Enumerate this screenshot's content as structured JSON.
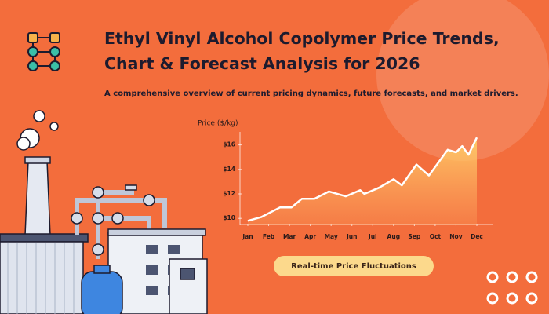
{
  "header": {
    "title_lines": [
      "Ethyl Vinyl Alcohol Copolymer Price Trends,",
      "Chart & Forecast Analysis for 2026"
    ],
    "subtitle": "A comprehensive overview of current pricing dynamics, future forecasts, and market drivers."
  },
  "chart_data": {
    "type": "area",
    "y_label": "Price ($/kg)",
    "x": [
      1,
      1.64,
      2.55,
      3.1,
      3.6,
      4.2,
      4.9,
      5.7,
      6.4,
      6.6,
      7.3,
      8.0,
      8.4,
      9.1,
      9.7,
      10.6,
      11.0,
      11.3,
      11.6,
      12
    ],
    "values": [
      9.8,
      10.1,
      10.9,
      10.9,
      11.6,
      11.6,
      12.2,
      11.8,
      12.3,
      12.0,
      12.5,
      13.2,
      12.7,
      14.4,
      13.5,
      15.6,
      15.4,
      15.9,
      15.2,
      16.6
    ],
    "color": "#ffffff",
    "xlim": [
      1,
      12
    ],
    "xticks": [
      {
        "value": 1,
        "label": "Jan"
      },
      {
        "value": 2,
        "label": "Feb"
      },
      {
        "value": 3,
        "label": "Mar"
      },
      {
        "value": 4,
        "label": "Apr"
      },
      {
        "value": 5,
        "label": "May"
      },
      {
        "value": 6,
        "label": "Jun"
      },
      {
        "value": 7,
        "label": "Jul"
      },
      {
        "value": 8,
        "label": "Aug"
      },
      {
        "value": 9,
        "label": "Sep"
      },
      {
        "value": 10,
        "label": "Oct"
      },
      {
        "value": 11,
        "label": "Nov"
      },
      {
        "value": 12,
        "label": "Dec"
      }
    ],
    "ylim": [
      9.5,
      17
    ],
    "yticks": [
      {
        "value": 10,
        "label": "$10"
      },
      {
        "value": 12,
        "label": "$12"
      },
      {
        "value": 14,
        "label": "$14"
      },
      {
        "value": 16,
        "label": "$16"
      }
    ]
  },
  "badge": "Real-time Price Fluctuations"
}
